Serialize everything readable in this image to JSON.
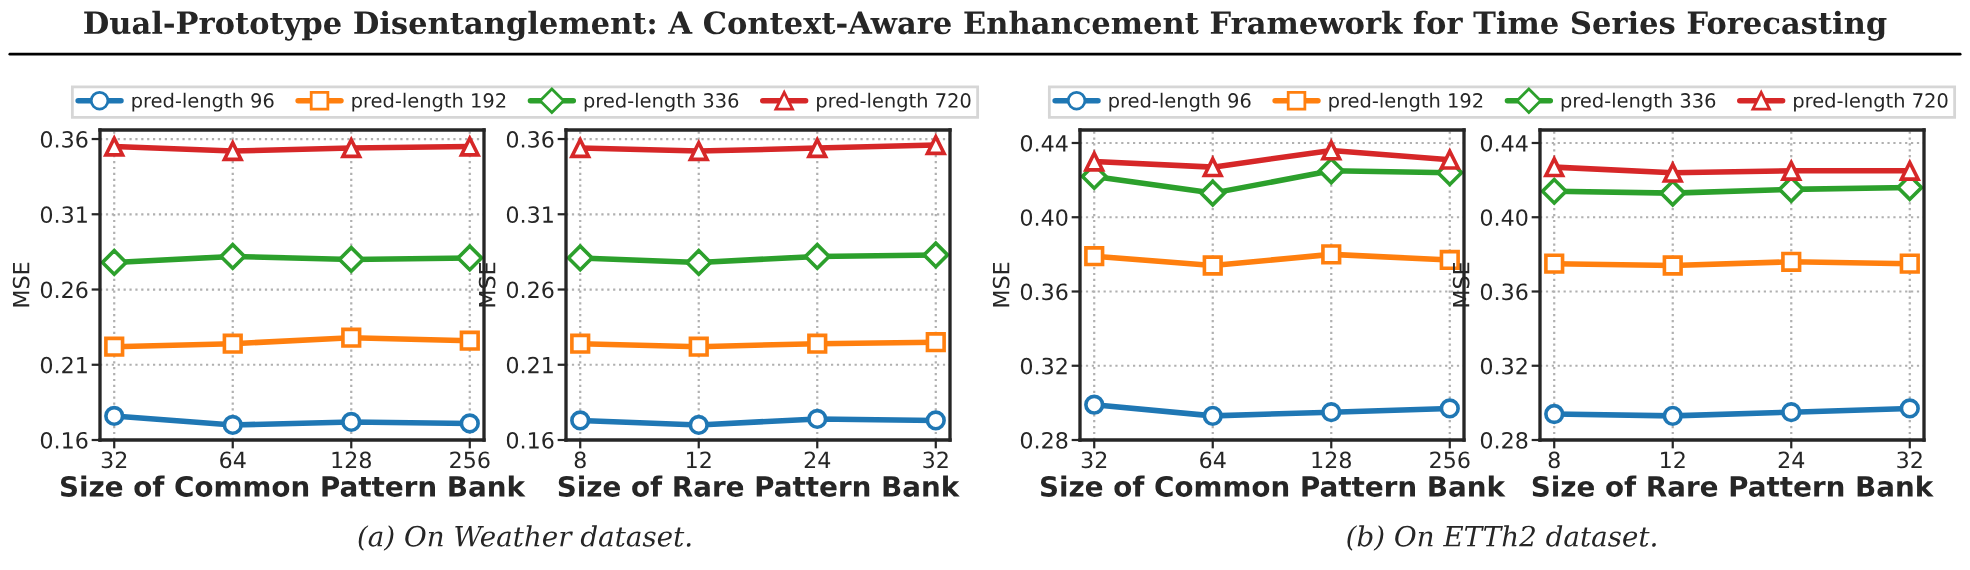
{
  "chart_data": [
    {
      "type": "line",
      "title": "Dual-Prototype Disentanglement: A Context-Aware Enhancement Framework for Time Series Forecasting",
      "xlabel": "Size of Common Pattern Bank",
      "ylabel": "MSE",
      "categories": [
        "32",
        "64",
        "128",
        "256"
      ],
      "ylim": [
        0.16,
        0.366
      ],
      "yticks": [
        0.16,
        0.21,
        0.26,
        0.31,
        0.36
      ],
      "grid": true,
      "legend": "top",
      "line_style": "solid",
      "annotations": [
        "(a) On Weather dataset."
      ],
      "series": [
        {
          "name": "pred-length 96",
          "color": "#1f77b4",
          "marker": "circle",
          "values": [
            0.176,
            0.17,
            0.172,
            0.171
          ]
        },
        {
          "name": "pred-length 192",
          "color": "#ff7f0e",
          "marker": "square",
          "values": [
            0.222,
            0.224,
            0.228,
            0.226
          ]
        },
        {
          "name": "pred-length 336",
          "color": "#2ca02c",
          "marker": "diamond",
          "values": [
            0.278,
            0.282,
            0.28,
            0.281
          ]
        },
        {
          "name": "pred-length 720",
          "color": "#d62728",
          "marker": "triangle",
          "values": [
            0.355,
            0.352,
            0.354,
            0.355
          ]
        }
      ]
    },
    {
      "type": "line",
      "xlabel": "Size of Rare Pattern Bank",
      "ylabel": "MSE",
      "categories": [
        "8",
        "12",
        "24",
        "32"
      ],
      "ylim": [
        0.16,
        0.366
      ],
      "yticks": [
        0.16,
        0.21,
        0.26,
        0.31,
        0.36
      ],
      "grid": true,
      "line_style": "solid",
      "series": [
        {
          "color": "#1f77b4",
          "marker": "circle",
          "values": [
            0.173,
            0.17,
            0.174,
            0.173
          ]
        },
        {
          "color": "#ff7f0e",
          "marker": "square",
          "values": [
            0.224,
            0.222,
            0.224,
            0.225
          ]
        },
        {
          "color": "#2ca02c",
          "marker": "diamond",
          "values": [
            0.281,
            0.278,
            0.282,
            0.283
          ]
        },
        {
          "color": "#d62728",
          "marker": "triangle",
          "values": [
            0.354,
            0.352,
            0.354,
            0.356
          ]
        }
      ]
    },
    {
      "type": "line",
      "xlabel": "Size of Common Pattern Bank",
      "ylabel": "MSE",
      "categories": [
        "32",
        "64",
        "128",
        "256"
      ],
      "ylim": [
        0.28,
        0.447
      ],
      "yticks": [
        0.28,
        0.32,
        0.36,
        {
          "value": 0.4,
          "label": "0.40"
        },
        0.44
      ],
      "grid": true,
      "legend": "top",
      "line_style": "solid",
      "annotations": [
        "(b) On ETTh2 dataset."
      ],
      "series": [
        {
          "name": "pred-length 96",
          "color": "#1f77b4",
          "marker": "circle",
          "values": [
            0.299,
            0.293,
            0.295,
            0.297
          ]
        },
        {
          "name": "pred-length 192",
          "color": "#ff7f0e",
          "marker": "square",
          "values": [
            0.379,
            0.374,
            0.38,
            0.377
          ]
        },
        {
          "name": "pred-length 336",
          "color": "#2ca02c",
          "marker": "diamond",
          "values": [
            0.422,
            0.413,
            0.425,
            0.424
          ]
        },
        {
          "name": "pred-length 720",
          "color": "#d62728",
          "marker": "triangle",
          "values": [
            0.43,
            0.427,
            0.436,
            0.431
          ]
        }
      ]
    },
    {
      "type": "line",
      "xlabel": "Size of Rare Pattern Bank",
      "ylabel": "MSE",
      "categories": [
        "8",
        "12",
        "24",
        "32"
      ],
      "ylim": [
        0.28,
        0.447
      ],
      "yticks": [
        0.28,
        0.32,
        0.36,
        {
          "value": 0.4,
          "label": "0.40"
        },
        0.44
      ],
      "grid": true,
      "line_style": "solid",
      "series": [
        {
          "color": "#1f77b4",
          "marker": "circle",
          "values": [
            0.294,
            0.293,
            0.295,
            0.297
          ]
        },
        {
          "color": "#ff7f0e",
          "marker": "square",
          "values": [
            0.375,
            0.374,
            0.376,
            0.375
          ]
        },
        {
          "color": "#2ca02c",
          "marker": "diamond",
          "values": [
            0.414,
            0.413,
            0.415,
            0.416
          ]
        },
        {
          "color": "#d62728",
          "marker": "triangle",
          "values": [
            0.427,
            0.424,
            0.425,
            0.425
          ]
        }
      ]
    }
  ]
}
